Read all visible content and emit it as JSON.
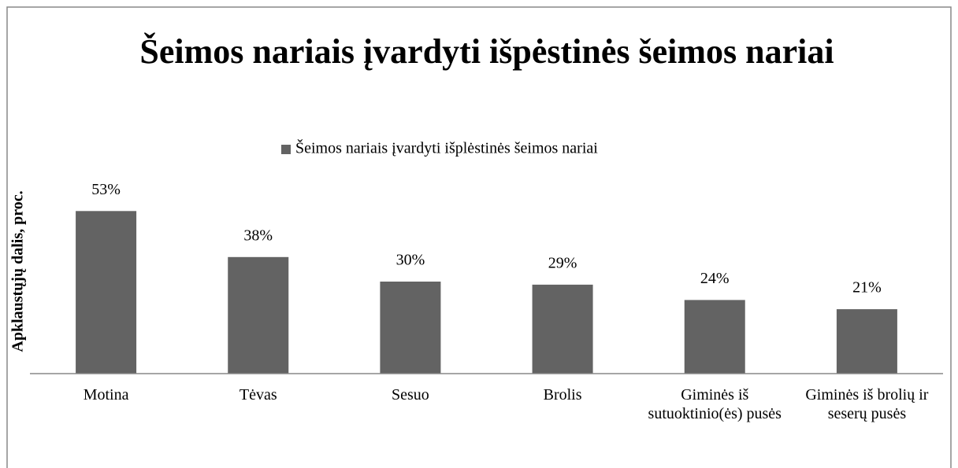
{
  "chart_data": {
    "type": "bar",
    "title": "Šeimos nariais įvardyti išpėstinės šeimos nariai",
    "y_label": "Apklaustųjų dalis, proc.",
    "categories": [
      "Motina",
      "Tėvas",
      "Sesuo",
      "Brolis",
      "Giminės iš sutuoktinio(ės) pusės",
      "Giminės iš brolių ir seserų pusės"
    ],
    "series": [
      {
        "name": "Šeimos nariais įvardyti išplėstinės šeimos nariai",
        "color": "#636363",
        "values": [
          53,
          38,
          30,
          29,
          24,
          21
        ],
        "value_labels": [
          "53%",
          "38%",
          "30%",
          "29%",
          "24%",
          "21%"
        ]
      }
    ],
    "ylim": [
      0,
      60
    ]
  }
}
